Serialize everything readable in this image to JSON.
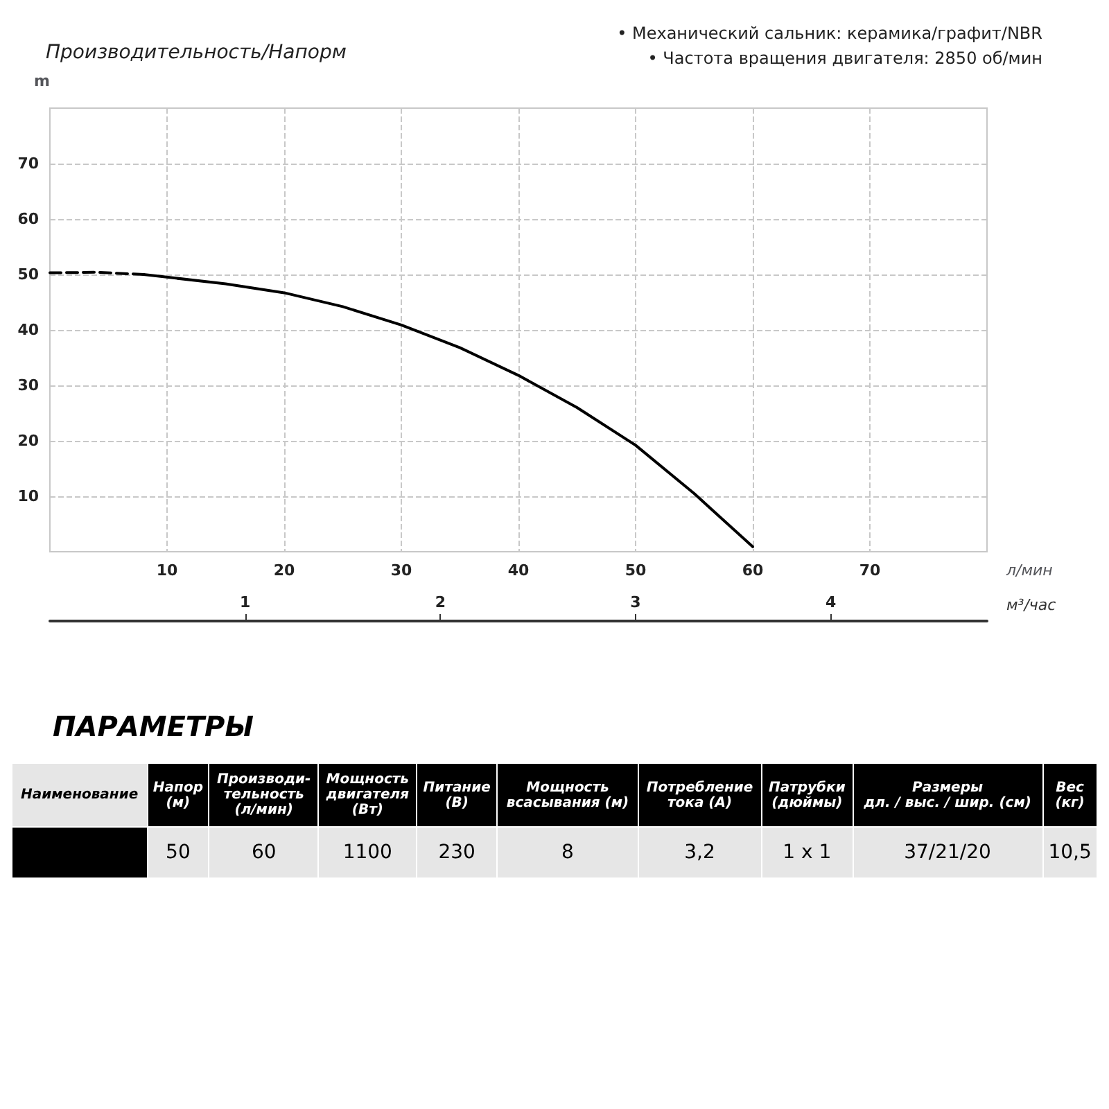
{
  "chart_data": [
    {
      "type": "line",
      "title": "Производительность/Напорм",
      "ylabel": "m",
      "xlabel": "л/мин",
      "x2label": "м³/час",
      "annotations": [
        "• Механический сальник: керамика/графит/NBR",
        "• Частота вращения двигателя: 2850 об/мин"
      ],
      "series": [
        {
          "color": "#000000",
          "line_style": "dashed",
          "x": [
            0,
            4,
            8
          ],
          "values": [
            50.3,
            50.4,
            50
          ]
        },
        {
          "color": "#000000",
          "line_style": "solid",
          "x": [
            8,
            15,
            20,
            25,
            30,
            35,
            40,
            45,
            50,
            55,
            60
          ],
          "values": [
            50,
            48.3,
            46.7,
            44.2,
            40.9,
            36.8,
            31.8,
            26,
            19.2,
            10.5,
            0.9
          ]
        }
      ],
      "xlim": [
        0,
        80
      ],
      "xticks": [
        10,
        20,
        30,
        40,
        50,
        60,
        70
      ],
      "ylim": [
        0,
        80
      ],
      "yticks": [
        10,
        20,
        30,
        40,
        50,
        60,
        70
      ],
      "x2lim": [
        0,
        4.8
      ],
      "x2ticks": [
        1,
        2,
        3,
        4
      ],
      "grid": true,
      "marker": "none"
    },
    {
      "type": "other",
      "title": "ПАРАМЕТРЫ",
      "categories": [
        "Наименование",
        "Напор\n(м)",
        "Производи-\nтельность\n(л/мин)",
        "Мощность\nдвигателя\n(Вт)",
        "Питание\n(В)",
        "Мощность\nвсасывания (м)",
        "Потребление\nтока (А)",
        "Патрубки\n(дюймы)",
        "Размеры\nдл. / выс. / шир. (см)",
        "Вес\n(кг)"
      ],
      "annotations": [
        "50",
        "60",
        "1100",
        "230",
        "8",
        "3,2",
        "1 x 1",
        "37/21/20",
        "10,5"
      ]
    }
  ]
}
